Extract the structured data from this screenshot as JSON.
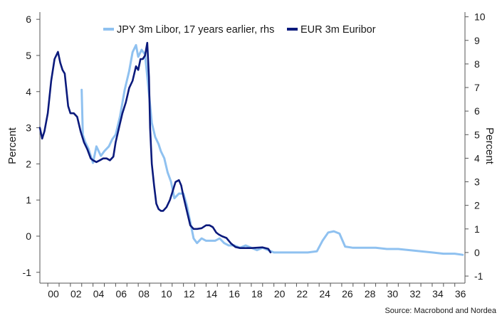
{
  "chart_data": {
    "type": "line",
    "source": "Source: Macrobond and Nordea",
    "x_ticks": [
      "00",
      "02",
      "04",
      "06",
      "08",
      "10",
      "12",
      "14",
      "16",
      "18",
      "20",
      "22",
      "24",
      "26",
      "28",
      "30",
      "32",
      "34",
      "36"
    ],
    "xlim": [
      1999.3,
      2036.9
    ],
    "left_axis": {
      "label": "Percent",
      "ylim": [
        -1.3,
        6.2
      ],
      "ticks": [
        "-1",
        "0",
        "1",
        "2",
        "3",
        "4",
        "5",
        "6"
      ]
    },
    "right_axis": {
      "label": "Percent",
      "ylim": [
        -1.3,
        10.2
      ],
      "ticks": [
        "-1",
        "0",
        "1",
        "2",
        "3",
        "4",
        "5",
        "6",
        "7",
        "8",
        "9",
        "10"
      ]
    },
    "series": [
      {
        "name": "JPY 3m Libor, 17 years earlier, rhs",
        "axis": "right",
        "color": "#8fc1f0",
        "x": [
          2003.0,
          2003.1,
          2003.3,
          2003.6,
          2004.0,
          2004.3,
          2004.7,
          2005.0,
          2005.4,
          2005.7,
          2006.0,
          2006.4,
          2006.8,
          2007.2,
          2007.5,
          2007.8,
          2008.0,
          2008.3,
          2008.6,
          2008.9,
          2009.2,
          2009.5,
          2009.8,
          2010.0,
          2010.3,
          2010.6,
          2010.9,
          2011.2,
          2011.6,
          2012.0,
          2012.3,
          2012.6,
          2012.9,
          2013.2,
          2013.6,
          2014.0,
          2014.4,
          2014.8,
          2015.2,
          2015.6,
          2016.0,
          2016.5,
          2017.0,
          2017.5,
          2018.0,
          2018.5,
          2019.0,
          2019.5,
          2020.0,
          2021.0,
          2022.0,
          2023.0,
          2023.8,
          2024.3,
          2024.8,
          2025.3,
          2025.8,
          2026.3,
          2027.0,
          2028.0,
          2029.0,
          2030.0,
          2031.0,
          2032.0,
          2033.0,
          2034.0,
          2035.0,
          2036.0,
          2036.7
        ],
        "values": [
          6.9,
          5.0,
          4.7,
          4.4,
          3.8,
          4.5,
          4.1,
          4.3,
          4.5,
          4.8,
          5.0,
          5.8,
          6.9,
          7.7,
          8.5,
          8.8,
          8.3,
          8.6,
          8.4,
          7.0,
          5.5,
          4.9,
          4.6,
          4.3,
          4.0,
          3.4,
          3.0,
          2.3,
          2.5,
          2.5,
          2.0,
          1.3,
          0.6,
          0.4,
          0.6,
          0.5,
          0.5,
          0.5,
          0.6,
          0.4,
          0.3,
          0.3,
          0.2,
          0.3,
          0.2,
          0.1,
          0.2,
          0.1,
          0.0,
          0.0,
          0.0,
          0.0,
          0.05,
          0.5,
          0.85,
          0.9,
          0.8,
          0.25,
          0.2,
          0.2,
          0.2,
          0.15,
          0.15,
          0.1,
          0.05,
          0.0,
          -0.05,
          -0.05,
          -0.1
        ]
      },
      {
        "name": "EUR 3m Euribor",
        "axis": "left",
        "color": "#0b1a7c",
        "x": [
          1999.3,
          1999.5,
          1999.7,
          2000.0,
          2000.3,
          2000.6,
          2000.9,
          2001.1,
          2001.3,
          2001.5,
          2001.8,
          2002.0,
          2002.3,
          2002.6,
          2002.9,
          2003.2,
          2003.5,
          2003.8,
          2004.0,
          2004.3,
          2004.6,
          2004.9,
          2005.2,
          2005.5,
          2005.8,
          2006.0,
          2006.3,
          2006.6,
          2006.9,
          2007.2,
          2007.5,
          2007.8,
          2008.0,
          2008.2,
          2008.4,
          2008.6,
          2008.8,
          2008.95,
          2009.05,
          2009.2,
          2009.4,
          2009.6,
          2009.8,
          2010.0,
          2010.2,
          2010.5,
          2010.8,
          2011.0,
          2011.3,
          2011.6,
          2011.8,
          2012.0,
          2012.3,
          2012.6,
          2012.9,
          2013.2,
          2013.6,
          2014.0,
          2014.3,
          2014.6,
          2014.9,
          2015.1,
          2015.4,
          2015.8,
          2016.2,
          2016.6,
          2017.0,
          2017.5,
          2018.0,
          2018.5,
          2019.0,
          2019.5,
          2019.7
        ],
        "values": [
          3.0,
          2.7,
          2.9,
          3.4,
          4.3,
          4.9,
          5.1,
          4.8,
          4.6,
          4.5,
          3.6,
          3.4,
          3.4,
          3.3,
          2.9,
          2.6,
          2.4,
          2.15,
          2.1,
          2.05,
          2.1,
          2.15,
          2.15,
          2.1,
          2.2,
          2.6,
          3.0,
          3.4,
          3.7,
          4.1,
          4.3,
          4.7,
          4.6,
          4.9,
          4.9,
          5.0,
          5.35,
          4.4,
          3.0,
          2.0,
          1.4,
          0.9,
          0.75,
          0.7,
          0.7,
          0.8,
          1.0,
          1.2,
          1.5,
          1.55,
          1.4,
          1.1,
          0.7,
          0.3,
          0.2,
          0.2,
          0.22,
          0.3,
          0.3,
          0.25,
          0.1,
          0.05,
          0.0,
          -0.05,
          -0.2,
          -0.3,
          -0.33,
          -0.33,
          -0.33,
          -0.32,
          -0.31,
          -0.35,
          -0.45
        ]
      }
    ]
  }
}
